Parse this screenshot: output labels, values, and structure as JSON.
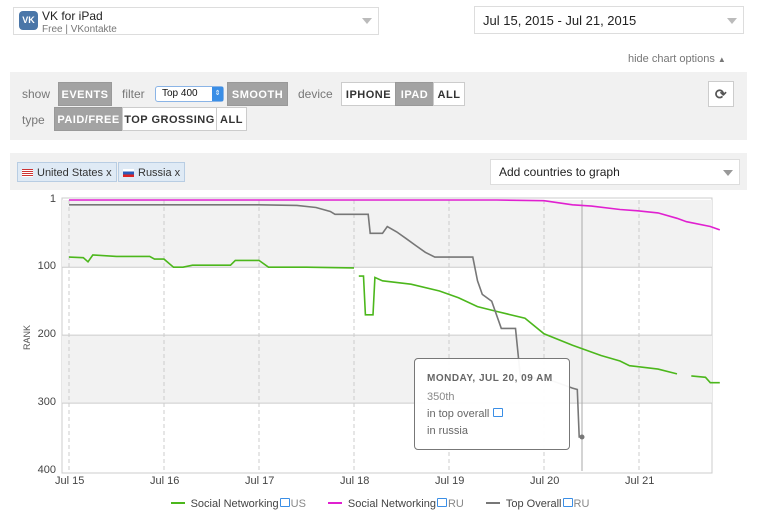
{
  "app": {
    "name": "VK for iPad",
    "subtitle": "Free | VKontakte",
    "icon": "vk-logo-icon"
  },
  "date_range": "Jul 15, 2015 - Jul 21, 2015",
  "hide_options": "hide chart options",
  "options": {
    "show_label": "show",
    "events": "EVENTS",
    "filter_label": "filter",
    "filter_value": "Top 400",
    "smooth": "SMOOTH",
    "device_label": "device",
    "devices": [
      "IPHONE",
      "IPAD",
      "ALL"
    ],
    "type_label": "type",
    "types": [
      "PAID/FREE",
      "TOP GROSSING",
      "ALL"
    ]
  },
  "countries": [
    {
      "label": "United States x"
    },
    {
      "label": "Russia x"
    }
  ],
  "add_countries": "Add countries to graph",
  "tooltip": {
    "title": "MONDAY, JUL 20, 09 AM",
    "rank": "350th",
    "line2": "in top overall",
    "line3": "in russia"
  },
  "chart_data": {
    "type": "line",
    "ylabel": "RANK",
    "ylim": [
      400,
      1
    ],
    "yticks": [
      "1",
      "100",
      "200",
      "300",
      "400"
    ],
    "xticks": [
      "Jul 15",
      "Jul 16",
      "Jul 17",
      "Jul 18",
      "Jul 19",
      "Jul 20",
      "Jul 21"
    ],
    "colors": {
      "us": "#4cb71c",
      "ru": "#e020d0",
      "top": "#777777"
    },
    "series": [
      {
        "name": "Social Networking",
        "suffix": "US",
        "key": "us",
        "segments": [
          [
            [
              15,
              85
            ],
            [
              15.15,
              86
            ],
            [
              15.2,
              92
            ],
            [
              15.25,
              82
            ],
            [
              15.5,
              84
            ],
            [
              15.85,
              84
            ],
            [
              15.9,
              88
            ],
            [
              16.0,
              88
            ],
            [
              16.1,
              100
            ],
            [
              16.2,
              100
            ],
            [
              16.3,
              97
            ],
            [
              16.7,
              97
            ],
            [
              16.75,
              90
            ],
            [
              17.0,
              90
            ],
            [
              17.1,
              100
            ],
            [
              17.5,
              100
            ],
            [
              18.0,
              101
            ]
          ],
          [
            [
              18.05,
              113
            ],
            [
              18.1,
              113
            ],
            [
              18.12,
              170
            ],
            [
              18.2,
              170
            ],
            [
              18.22,
              115
            ],
            [
              18.3,
              120
            ],
            [
              18.6,
              125
            ],
            [
              18.9,
              135
            ],
            [
              19.1,
              145
            ],
            [
              19.3,
              158
            ],
            [
              19.5,
              165
            ],
            [
              19.8,
              175
            ],
            [
              20.0,
              198
            ],
            [
              20.3,
              215
            ],
            [
              20.6,
              230
            ],
            [
              20.8,
              238
            ],
            [
              20.9,
              245
            ],
            [
              21.2,
              250
            ],
            [
              21.4,
              257
            ]
          ],
          [
            [
              21.55,
              260
            ],
            [
              21.7,
              262
            ],
            [
              21.75,
              270
            ],
            [
              21.85,
              270
            ]
          ]
        ]
      },
      {
        "name": "Social Networking",
        "suffix": "RU",
        "key": "ru",
        "segments": [
          [
            [
              15,
              1
            ],
            [
              19.0,
              1
            ],
            [
              19.5,
              1
            ],
            [
              20.0,
              2
            ],
            [
              20.3,
              8
            ],
            [
              20.5,
              10
            ],
            [
              20.8,
              15
            ],
            [
              21.0,
              17
            ],
            [
              21.2,
              20
            ],
            [
              21.4,
              28
            ],
            [
              21.5,
              33
            ],
            [
              21.75,
              40
            ],
            [
              21.85,
              45
            ]
          ]
        ]
      },
      {
        "name": "Top Overall",
        "suffix": "RU",
        "key": "top",
        "segments": [
          [
            [
              15,
              8
            ],
            [
              17.0,
              8
            ],
            [
              17.4,
              9
            ],
            [
              17.6,
              12
            ],
            [
              17.75,
              18
            ],
            [
              17.8,
              22
            ],
            [
              18.15,
              22
            ],
            [
              18.17,
              50
            ],
            [
              18.3,
              50
            ],
            [
              18.35,
              40
            ],
            [
              18.45,
              48
            ],
            [
              18.55,
              58
            ],
            [
              18.65,
              68
            ],
            [
              18.75,
              78
            ],
            [
              18.85,
              85
            ],
            [
              19.25,
              85
            ],
            [
              19.3,
              120
            ],
            [
              19.35,
              140
            ],
            [
              19.45,
              150
            ],
            [
              19.55,
              190
            ],
            [
              19.7,
              190
            ],
            [
              19.75,
              260
            ],
            [
              20.1,
              268
            ],
            [
              20.3,
              278
            ],
            [
              20.35,
              280
            ],
            [
              20.37,
              350
            ],
            [
              20.4,
              350
            ]
          ]
        ]
      }
    ]
  }
}
